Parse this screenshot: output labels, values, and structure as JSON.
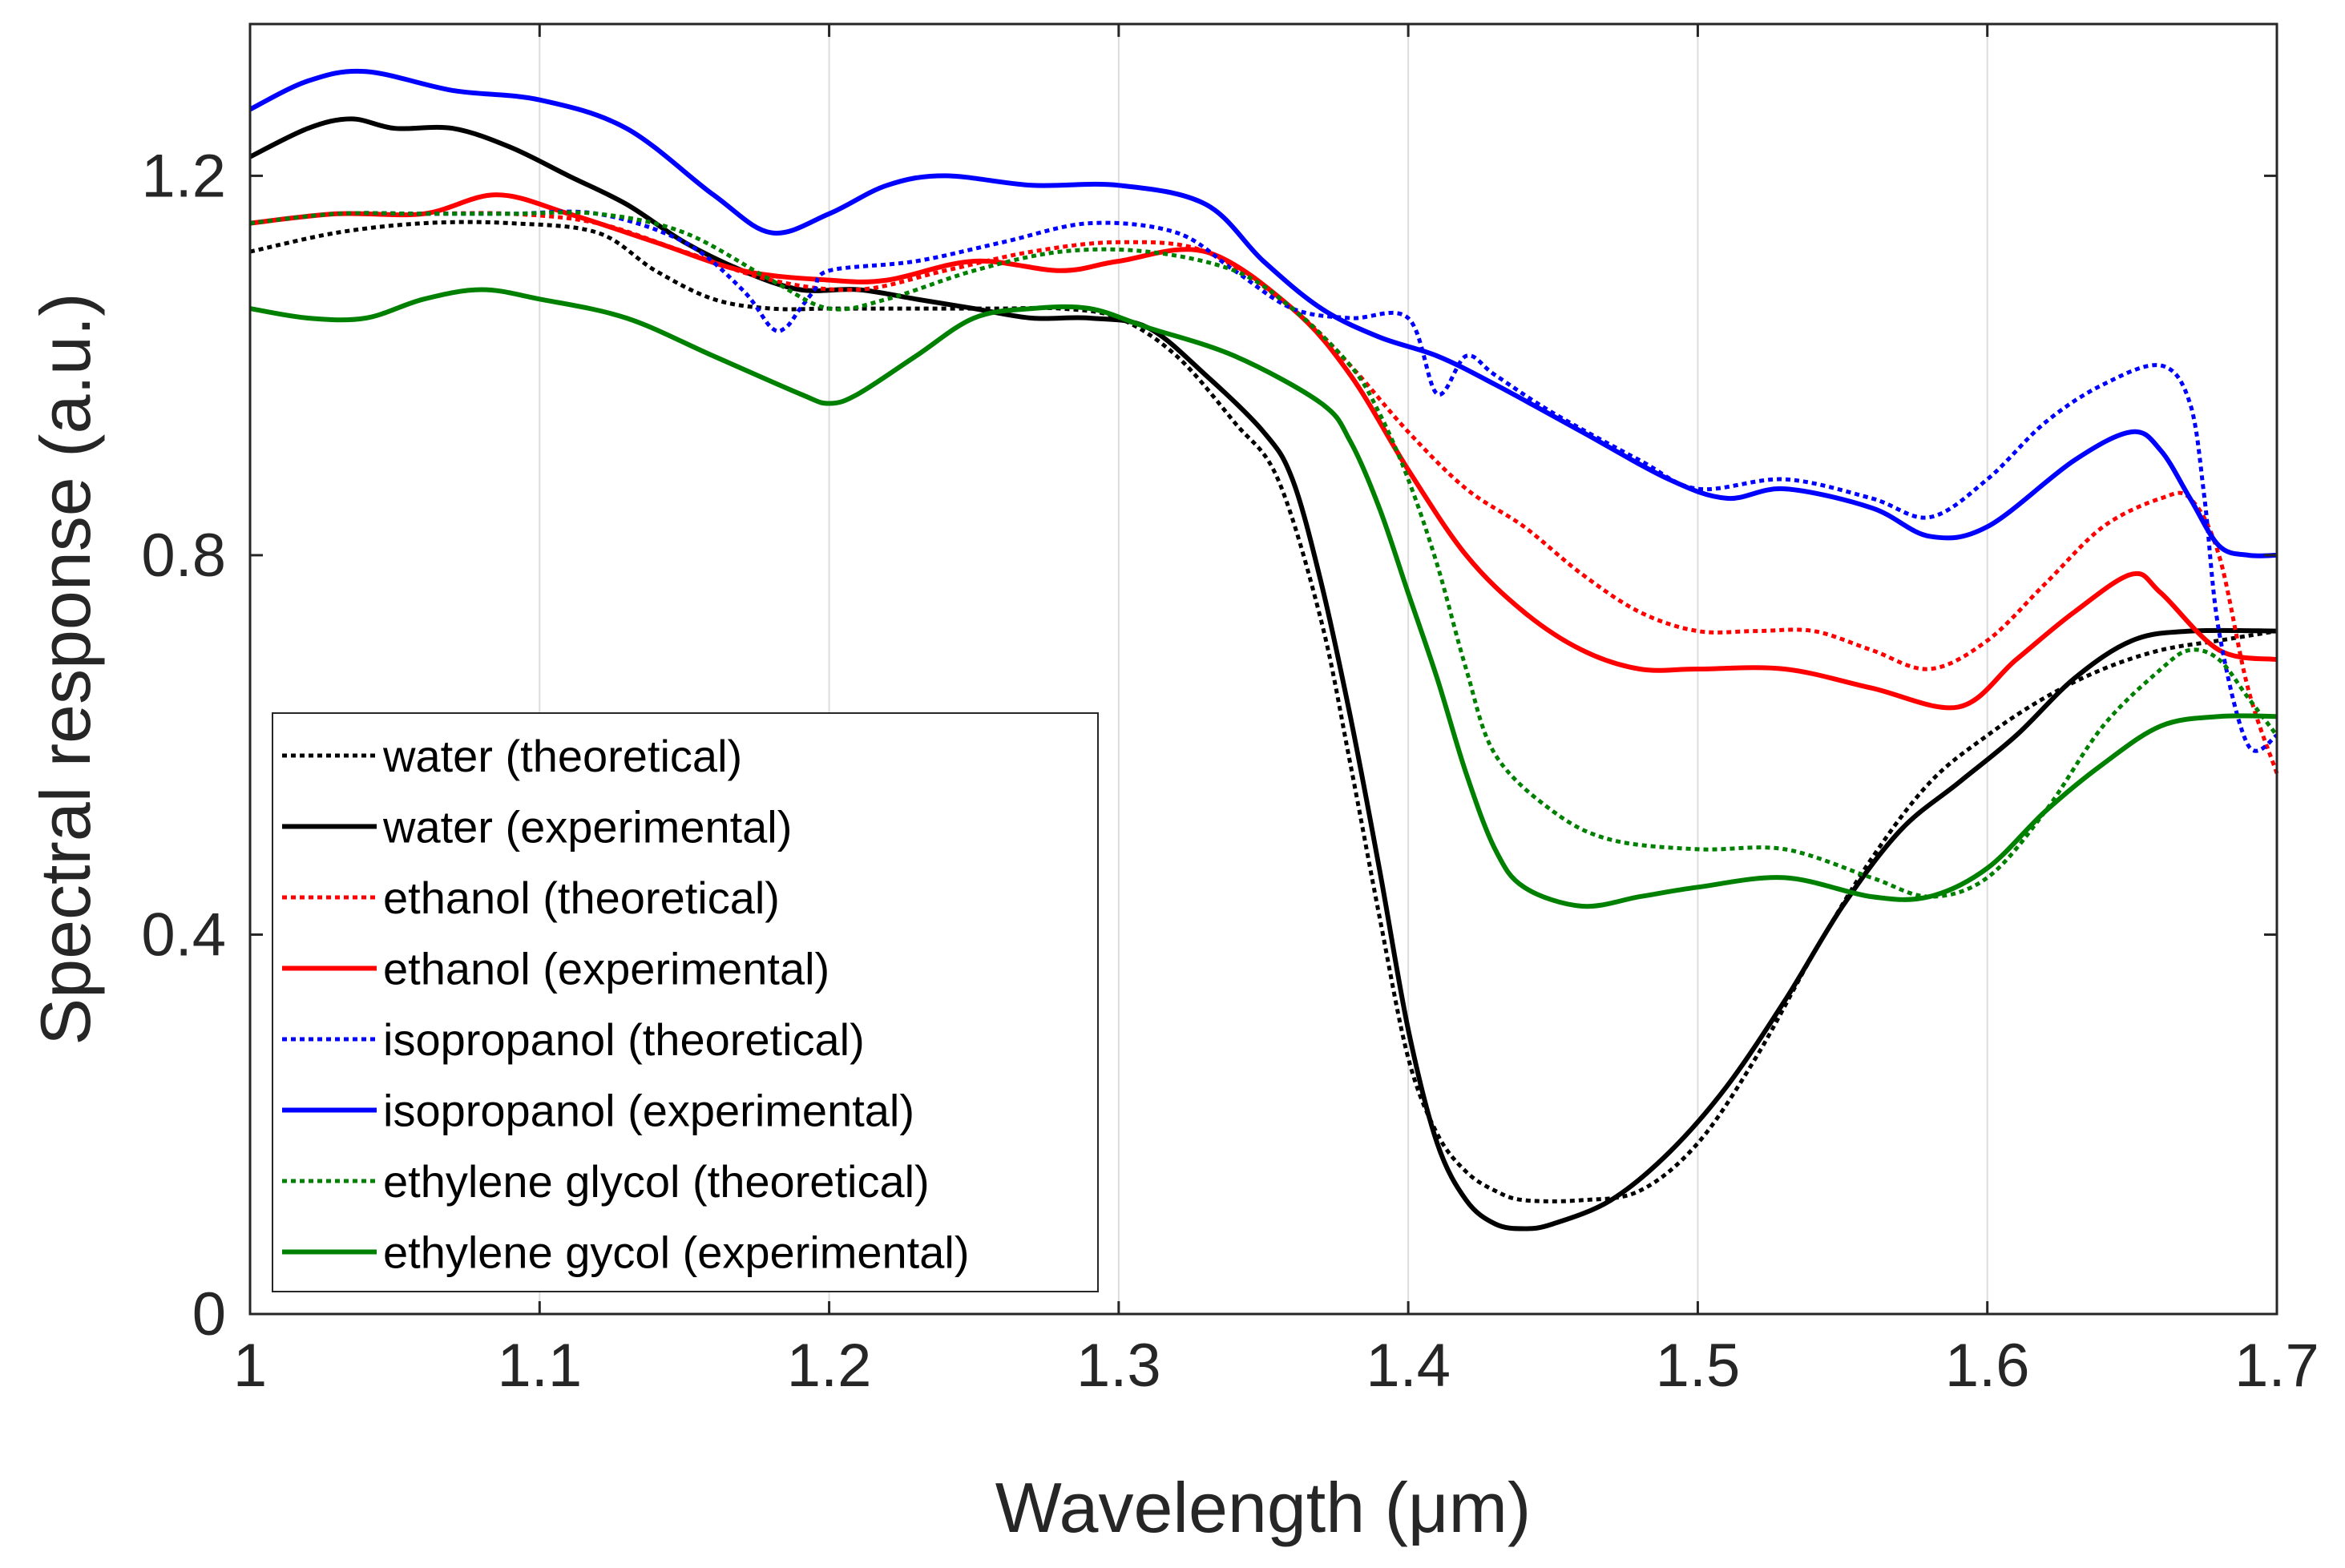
{
  "chart_data": {
    "type": "line",
    "title": "",
    "xlabel": "Wavelength (μm)",
    "ylabel": "Spectral response (a.u.)",
    "xlim": [
      1.0,
      1.7
    ],
    "ylim": [
      0,
      1.36
    ],
    "xticks": [
      1.0,
      1.1,
      1.2,
      1.3,
      1.4,
      1.5,
      1.6,
      1.7
    ],
    "xtick_labels": [
      "1",
      "1.1",
      "1.2",
      "1.3",
      "1.4",
      "1.5",
      "1.6",
      "1.7"
    ],
    "yticks": [
      0,
      0.4,
      0.8,
      1.2
    ],
    "ytick_labels": [
      "0",
      "0.4",
      "0.8",
      "1.2"
    ],
    "grid": "x-only",
    "legend_position": "bottom-left",
    "series": [
      {
        "name": "water (theoretical)",
        "color": "#000000",
        "style": "dotted",
        "x": [
          1.0,
          1.03,
          1.06,
          1.09,
          1.12,
          1.14,
          1.16,
          1.18,
          1.2,
          1.22,
          1.24,
          1.26,
          1.28,
          1.3,
          1.32,
          1.34,
          1.355,
          1.37,
          1.38,
          1.39,
          1.4,
          1.41,
          1.42,
          1.43,
          1.44,
          1.46,
          1.48,
          1.5,
          1.52,
          1.54,
          1.56,
          1.58,
          1.6,
          1.62,
          1.64,
          1.66,
          1.68,
          1.7
        ],
        "y": [
          1.12,
          1.14,
          1.15,
          1.15,
          1.14,
          1.1,
          1.07,
          1.06,
          1.06,
          1.06,
          1.06,
          1.06,
          1.06,
          1.05,
          1.01,
          0.94,
          0.88,
          0.73,
          0.58,
          0.42,
          0.27,
          0.19,
          0.15,
          0.13,
          0.12,
          0.12,
          0.13,
          0.18,
          0.27,
          0.38,
          0.48,
          0.56,
          0.61,
          0.65,
          0.68,
          0.7,
          0.71,
          0.72
        ]
      },
      {
        "name": "water (experimental)",
        "color": "#000000",
        "style": "solid",
        "x": [
          1.0,
          1.02,
          1.035,
          1.05,
          1.07,
          1.09,
          1.11,
          1.13,
          1.15,
          1.17,
          1.19,
          1.21,
          1.23,
          1.25,
          1.27,
          1.29,
          1.31,
          1.33,
          1.35,
          1.36,
          1.37,
          1.38,
          1.39,
          1.4,
          1.41,
          1.42,
          1.43,
          1.44,
          1.45,
          1.47,
          1.49,
          1.51,
          1.53,
          1.55,
          1.57,
          1.59,
          1.61,
          1.63,
          1.65,
          1.67,
          1.7
        ],
        "y": [
          1.22,
          1.25,
          1.26,
          1.25,
          1.25,
          1.23,
          1.2,
          1.17,
          1.13,
          1.1,
          1.08,
          1.08,
          1.07,
          1.06,
          1.05,
          1.05,
          1.04,
          0.99,
          0.93,
          0.88,
          0.77,
          0.63,
          0.47,
          0.3,
          0.18,
          0.12,
          0.095,
          0.09,
          0.095,
          0.12,
          0.17,
          0.24,
          0.33,
          0.43,
          0.51,
          0.56,
          0.61,
          0.67,
          0.71,
          0.72,
          0.72
        ]
      },
      {
        "name": "ethanol (theoretical)",
        "color": "#ff0000",
        "style": "dotted",
        "x": [
          1.0,
          1.03,
          1.06,
          1.09,
          1.12,
          1.15,
          1.18,
          1.21,
          1.24,
          1.27,
          1.3,
          1.33,
          1.36,
          1.38,
          1.4,
          1.42,
          1.44,
          1.46,
          1.48,
          1.5,
          1.52,
          1.54,
          1.56,
          1.58,
          1.6,
          1.62,
          1.64,
          1.66,
          1.67,
          1.68,
          1.69,
          1.7
        ],
        "y": [
          1.15,
          1.16,
          1.16,
          1.16,
          1.15,
          1.12,
          1.09,
          1.08,
          1.1,
          1.12,
          1.13,
          1.12,
          1.06,
          1.0,
          0.93,
          0.87,
          0.83,
          0.78,
          0.74,
          0.72,
          0.72,
          0.72,
          0.7,
          0.68,
          0.71,
          0.77,
          0.83,
          0.86,
          0.86,
          0.8,
          0.66,
          0.57
        ]
      },
      {
        "name": "ethanol (experimental)",
        "color": "#ff0000",
        "style": "solid",
        "x": [
          1.0,
          1.03,
          1.06,
          1.085,
          1.11,
          1.14,
          1.17,
          1.2,
          1.22,
          1.25,
          1.28,
          1.3,
          1.33,
          1.36,
          1.38,
          1.4,
          1.42,
          1.44,
          1.46,
          1.48,
          1.5,
          1.53,
          1.56,
          1.59,
          1.61,
          1.63,
          1.65,
          1.66,
          1.68,
          1.7
        ],
        "y": [
          1.15,
          1.16,
          1.16,
          1.18,
          1.16,
          1.13,
          1.1,
          1.09,
          1.09,
          1.11,
          1.1,
          1.11,
          1.12,
          1.06,
          0.99,
          0.89,
          0.8,
          0.74,
          0.7,
          0.68,
          0.68,
          0.68,
          0.66,
          0.64,
          0.69,
          0.74,
          0.78,
          0.76,
          0.7,
          0.69
        ]
      },
      {
        "name": "isopropanol (theoretical)",
        "color": "#0000ff",
        "style": "dotted",
        "x": [
          1.0,
          1.03,
          1.06,
          1.09,
          1.12,
          1.15,
          1.17,
          1.18,
          1.185,
          1.19,
          1.195,
          1.2,
          1.23,
          1.26,
          1.29,
          1.32,
          1.34,
          1.36,
          1.38,
          1.4,
          1.41,
          1.42,
          1.43,
          1.45,
          1.48,
          1.5,
          1.53,
          1.56,
          1.58,
          1.6,
          1.62,
          1.64,
          1.66,
          1.67,
          1.675,
          1.68,
          1.69,
          1.7
        ],
        "y": [
          1.15,
          1.16,
          1.16,
          1.16,
          1.16,
          1.13,
          1.08,
          1.04,
          1.04,
          1.06,
          1.08,
          1.1,
          1.11,
          1.13,
          1.15,
          1.14,
          1.1,
          1.06,
          1.05,
          1.05,
          0.97,
          1.01,
          0.99,
          0.95,
          0.9,
          0.87,
          0.88,
          0.86,
          0.84,
          0.88,
          0.94,
          0.98,
          1.0,
          0.96,
          0.86,
          0.72,
          0.6,
          0.61
        ]
      },
      {
        "name": "isopropanol (experimental)",
        "color": "#0000ff",
        "style": "solid",
        "x": [
          1.0,
          1.02,
          1.04,
          1.07,
          1.1,
          1.13,
          1.16,
          1.18,
          1.2,
          1.22,
          1.24,
          1.27,
          1.3,
          1.33,
          1.35,
          1.37,
          1.39,
          1.41,
          1.43,
          1.46,
          1.49,
          1.51,
          1.53,
          1.56,
          1.58,
          1.6,
          1.63,
          1.65,
          1.66,
          1.67,
          1.68,
          1.69,
          1.7
        ],
        "y": [
          1.27,
          1.3,
          1.31,
          1.29,
          1.28,
          1.25,
          1.18,
          1.14,
          1.16,
          1.19,
          1.2,
          1.19,
          1.19,
          1.17,
          1.11,
          1.06,
          1.03,
          1.01,
          0.98,
          0.93,
          0.88,
          0.86,
          0.87,
          0.85,
          0.82,
          0.83,
          0.9,
          0.93,
          0.91,
          0.86,
          0.81,
          0.8,
          0.8
        ]
      },
      {
        "name": "ethylene glycol (theoretical)",
        "color": "#008000",
        "style": "dotted",
        "x": [
          1.0,
          1.03,
          1.06,
          1.09,
          1.12,
          1.15,
          1.18,
          1.2,
          1.22,
          1.25,
          1.28,
          1.31,
          1.34,
          1.36,
          1.38,
          1.39,
          1.4,
          1.41,
          1.42,
          1.43,
          1.45,
          1.47,
          1.5,
          1.53,
          1.56,
          1.58,
          1.6,
          1.62,
          1.64,
          1.66,
          1.67,
          1.68,
          1.69,
          1.7
        ],
        "y": [
          1.15,
          1.16,
          1.16,
          1.16,
          1.16,
          1.14,
          1.09,
          1.06,
          1.07,
          1.1,
          1.12,
          1.12,
          1.1,
          1.06,
          1.0,
          0.95,
          0.88,
          0.79,
          0.68,
          0.59,
          0.53,
          0.5,
          0.49,
          0.49,
          0.46,
          0.44,
          0.46,
          0.53,
          0.62,
          0.68,
          0.7,
          0.69,
          0.65,
          0.61
        ]
      },
      {
        "name": "ethylene gycol (experimental)",
        "color": "#008000",
        "style": "solid",
        "x": [
          1.0,
          1.02,
          1.04,
          1.06,
          1.08,
          1.1,
          1.13,
          1.16,
          1.19,
          1.2,
          1.21,
          1.23,
          1.25,
          1.27,
          1.29,
          1.31,
          1.34,
          1.37,
          1.38,
          1.39,
          1.4,
          1.41,
          1.42,
          1.43,
          1.44,
          1.46,
          1.48,
          1.5,
          1.53,
          1.56,
          1.58,
          1.6,
          1.62,
          1.64,
          1.66,
          1.68,
          1.7
        ],
        "y": [
          1.06,
          1.05,
          1.05,
          1.07,
          1.08,
          1.07,
          1.05,
          1.01,
          0.97,
          0.96,
          0.97,
          1.01,
          1.05,
          1.06,
          1.06,
          1.04,
          1.01,
          0.96,
          0.92,
          0.85,
          0.76,
          0.67,
          0.57,
          0.49,
          0.45,
          0.43,
          0.44,
          0.45,
          0.46,
          0.44,
          0.44,
          0.47,
          0.53,
          0.58,
          0.62,
          0.63,
          0.63
        ]
      }
    ]
  }
}
